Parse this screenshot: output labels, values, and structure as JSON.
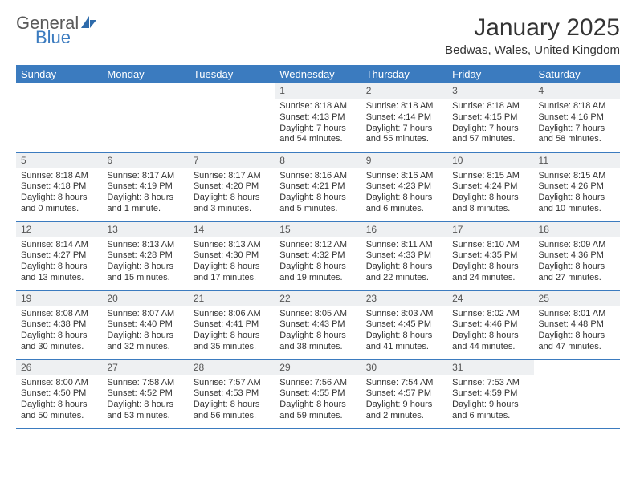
{
  "brand": {
    "word1": "General",
    "word2": "Blue",
    "word1_color": "#5a5a5a",
    "word2_color": "#3b7bbf",
    "sail_color": "#2e6bab"
  },
  "title": "January 2025",
  "location": "Bedwas, Wales, United Kingdom",
  "colors": {
    "header_bg": "#3b7bbf",
    "header_text": "#ffffff",
    "daynum_bg": "#eef0f2",
    "rule": "#3b7bbf",
    "text": "#333333"
  },
  "fonts": {
    "title_size": 30,
    "location_size": 15,
    "dayhead_size": 13,
    "body_size": 11
  },
  "day_headers": [
    "Sunday",
    "Monday",
    "Tuesday",
    "Wednesday",
    "Thursday",
    "Friday",
    "Saturday"
  ],
  "weeks": [
    [
      {
        "n": "",
        "sr": "",
        "ss": "",
        "dl": ""
      },
      {
        "n": "",
        "sr": "",
        "ss": "",
        "dl": ""
      },
      {
        "n": "",
        "sr": "",
        "ss": "",
        "dl": ""
      },
      {
        "n": "1",
        "sr": "Sunrise: 8:18 AM",
        "ss": "Sunset: 4:13 PM",
        "dl": "Daylight: 7 hours and 54 minutes."
      },
      {
        "n": "2",
        "sr": "Sunrise: 8:18 AM",
        "ss": "Sunset: 4:14 PM",
        "dl": "Daylight: 7 hours and 55 minutes."
      },
      {
        "n": "3",
        "sr": "Sunrise: 8:18 AM",
        "ss": "Sunset: 4:15 PM",
        "dl": "Daylight: 7 hours and 57 minutes."
      },
      {
        "n": "4",
        "sr": "Sunrise: 8:18 AM",
        "ss": "Sunset: 4:16 PM",
        "dl": "Daylight: 7 hours and 58 minutes."
      }
    ],
    [
      {
        "n": "5",
        "sr": "Sunrise: 8:18 AM",
        "ss": "Sunset: 4:18 PM",
        "dl": "Daylight: 8 hours and 0 minutes."
      },
      {
        "n": "6",
        "sr": "Sunrise: 8:17 AM",
        "ss": "Sunset: 4:19 PM",
        "dl": "Daylight: 8 hours and 1 minute."
      },
      {
        "n": "7",
        "sr": "Sunrise: 8:17 AM",
        "ss": "Sunset: 4:20 PM",
        "dl": "Daylight: 8 hours and 3 minutes."
      },
      {
        "n": "8",
        "sr": "Sunrise: 8:16 AM",
        "ss": "Sunset: 4:21 PM",
        "dl": "Daylight: 8 hours and 5 minutes."
      },
      {
        "n": "9",
        "sr": "Sunrise: 8:16 AM",
        "ss": "Sunset: 4:23 PM",
        "dl": "Daylight: 8 hours and 6 minutes."
      },
      {
        "n": "10",
        "sr": "Sunrise: 8:15 AM",
        "ss": "Sunset: 4:24 PM",
        "dl": "Daylight: 8 hours and 8 minutes."
      },
      {
        "n": "11",
        "sr": "Sunrise: 8:15 AM",
        "ss": "Sunset: 4:26 PM",
        "dl": "Daylight: 8 hours and 10 minutes."
      }
    ],
    [
      {
        "n": "12",
        "sr": "Sunrise: 8:14 AM",
        "ss": "Sunset: 4:27 PM",
        "dl": "Daylight: 8 hours and 13 minutes."
      },
      {
        "n": "13",
        "sr": "Sunrise: 8:13 AM",
        "ss": "Sunset: 4:28 PM",
        "dl": "Daylight: 8 hours and 15 minutes."
      },
      {
        "n": "14",
        "sr": "Sunrise: 8:13 AM",
        "ss": "Sunset: 4:30 PM",
        "dl": "Daylight: 8 hours and 17 minutes."
      },
      {
        "n": "15",
        "sr": "Sunrise: 8:12 AM",
        "ss": "Sunset: 4:32 PM",
        "dl": "Daylight: 8 hours and 19 minutes."
      },
      {
        "n": "16",
        "sr": "Sunrise: 8:11 AM",
        "ss": "Sunset: 4:33 PM",
        "dl": "Daylight: 8 hours and 22 minutes."
      },
      {
        "n": "17",
        "sr": "Sunrise: 8:10 AM",
        "ss": "Sunset: 4:35 PM",
        "dl": "Daylight: 8 hours and 24 minutes."
      },
      {
        "n": "18",
        "sr": "Sunrise: 8:09 AM",
        "ss": "Sunset: 4:36 PM",
        "dl": "Daylight: 8 hours and 27 minutes."
      }
    ],
    [
      {
        "n": "19",
        "sr": "Sunrise: 8:08 AM",
        "ss": "Sunset: 4:38 PM",
        "dl": "Daylight: 8 hours and 30 minutes."
      },
      {
        "n": "20",
        "sr": "Sunrise: 8:07 AM",
        "ss": "Sunset: 4:40 PM",
        "dl": "Daylight: 8 hours and 32 minutes."
      },
      {
        "n": "21",
        "sr": "Sunrise: 8:06 AM",
        "ss": "Sunset: 4:41 PM",
        "dl": "Daylight: 8 hours and 35 minutes."
      },
      {
        "n": "22",
        "sr": "Sunrise: 8:05 AM",
        "ss": "Sunset: 4:43 PM",
        "dl": "Daylight: 8 hours and 38 minutes."
      },
      {
        "n": "23",
        "sr": "Sunrise: 8:03 AM",
        "ss": "Sunset: 4:45 PM",
        "dl": "Daylight: 8 hours and 41 minutes."
      },
      {
        "n": "24",
        "sr": "Sunrise: 8:02 AM",
        "ss": "Sunset: 4:46 PM",
        "dl": "Daylight: 8 hours and 44 minutes."
      },
      {
        "n": "25",
        "sr": "Sunrise: 8:01 AM",
        "ss": "Sunset: 4:48 PM",
        "dl": "Daylight: 8 hours and 47 minutes."
      }
    ],
    [
      {
        "n": "26",
        "sr": "Sunrise: 8:00 AM",
        "ss": "Sunset: 4:50 PM",
        "dl": "Daylight: 8 hours and 50 minutes."
      },
      {
        "n": "27",
        "sr": "Sunrise: 7:58 AM",
        "ss": "Sunset: 4:52 PM",
        "dl": "Daylight: 8 hours and 53 minutes."
      },
      {
        "n": "28",
        "sr": "Sunrise: 7:57 AM",
        "ss": "Sunset: 4:53 PM",
        "dl": "Daylight: 8 hours and 56 minutes."
      },
      {
        "n": "29",
        "sr": "Sunrise: 7:56 AM",
        "ss": "Sunset: 4:55 PM",
        "dl": "Daylight: 8 hours and 59 minutes."
      },
      {
        "n": "30",
        "sr": "Sunrise: 7:54 AM",
        "ss": "Sunset: 4:57 PM",
        "dl": "Daylight: 9 hours and 2 minutes."
      },
      {
        "n": "31",
        "sr": "Sunrise: 7:53 AM",
        "ss": "Sunset: 4:59 PM",
        "dl": "Daylight: 9 hours and 6 minutes."
      },
      {
        "n": "",
        "sr": "",
        "ss": "",
        "dl": ""
      }
    ]
  ]
}
